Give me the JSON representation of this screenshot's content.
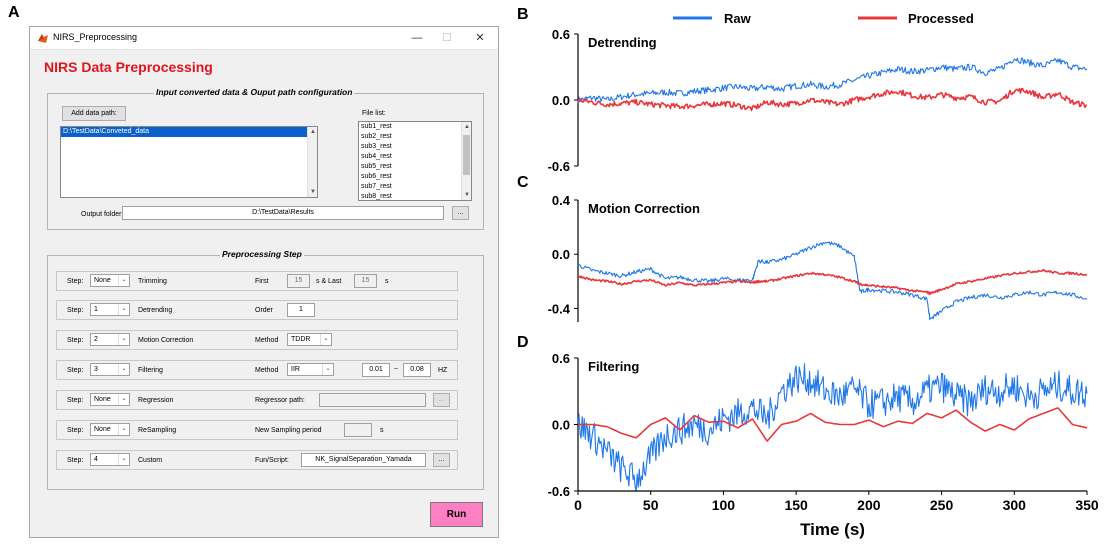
{
  "panels": {
    "a": "A",
    "b": "B",
    "c": "C",
    "d": "D"
  },
  "window": {
    "title": "NIRS_Preprocessing",
    "controls": {
      "minimize": "—",
      "maximize": "☐",
      "close": "✕"
    },
    "app_title": "NIRS Data Preprocessing",
    "io_group": {
      "legend": "Input converted data & Ouput path configuration",
      "add_data_button": "Add data path:",
      "data_paths": [
        "D:\\TestData\\Conveted_data"
      ],
      "file_list_label": "File list:",
      "file_list": [
        "sub1_rest",
        "sub2_rest",
        "sub3_rest",
        "sub4_rest",
        "sub5_rest",
        "sub6_rest",
        "sub7_rest",
        "sub8_rest"
      ],
      "output_label": "Output folder:",
      "output_value": "D:\\TestData\\Results",
      "browse_label": "..."
    },
    "steps_group": {
      "legend": "Preprocessing Step",
      "step_label": "Step:",
      "rows": [
        {
          "step": "None",
          "name": "Trimming",
          "param_label": "First",
          "v1": "15",
          "mid": "s & Last",
          "v2": "15",
          "unit": "s"
        },
        {
          "step": "1",
          "name": "Detrending",
          "param_label": "Order",
          "v1": "1"
        },
        {
          "step": "2",
          "name": "Motion Correction",
          "param_label": "Method",
          "method": "TDDR"
        },
        {
          "step": "3",
          "name": "Filtering",
          "param_label": "Method",
          "method": "IIR",
          "low": "0.01",
          "tilde": "~",
          "high": "0.08",
          "unit": "HZ"
        },
        {
          "step": "None",
          "name": "Regression",
          "param_label": "Regressor path:",
          "browse": "..."
        },
        {
          "step": "None",
          "name": "ReSampling",
          "param_label": "New Sampling period",
          "unit": "s"
        },
        {
          "step": "4",
          "name": "Custom",
          "param_label": "Fun/Script:",
          "script": "NK_SignalSeparation_Yamada",
          "browse": "..."
        }
      ]
    },
    "run_button": "Run"
  },
  "chart_data": [
    {
      "type": "line",
      "panel": "B",
      "annotation": "Detrending",
      "x": [
        0,
        10,
        20,
        30,
        40,
        50,
        60,
        70,
        80,
        90,
        100,
        110,
        120,
        130,
        140,
        150,
        160,
        170,
        180,
        190,
        200,
        210,
        220,
        230,
        240,
        250,
        260,
        270,
        280,
        290,
        300,
        310,
        320,
        330,
        340,
        350
      ],
      "series": [
        {
          "name": "Raw",
          "color": "#1f77e8",
          "values": [
            0.0,
            0.02,
            0.0,
            0.03,
            0.05,
            0.06,
            0.07,
            0.06,
            0.08,
            0.09,
            0.11,
            0.12,
            0.1,
            0.12,
            0.1,
            0.13,
            0.14,
            0.12,
            0.14,
            0.18,
            0.22,
            0.25,
            0.28,
            0.26,
            0.27,
            0.3,
            0.28,
            0.3,
            0.25,
            0.28,
            0.38,
            0.34,
            0.31,
            0.36,
            0.3,
            0.28
          ]
        },
        {
          "name": "Processed",
          "color": "#e8383d",
          "values": [
            0.0,
            -0.02,
            -0.04,
            -0.03,
            -0.02,
            -0.04,
            -0.05,
            -0.06,
            -0.05,
            -0.04,
            -0.03,
            -0.05,
            -0.08,
            -0.02,
            -0.04,
            -0.03,
            0.0,
            -0.02,
            -0.04,
            0.0,
            0.03,
            0.06,
            0.08,
            0.04,
            0.02,
            0.05,
            0.02,
            0.03,
            -0.02,
            -0.01,
            0.09,
            0.08,
            0.02,
            0.06,
            -0.02,
            -0.05
          ]
        }
      ],
      "yticks": [
        "0.6",
        "0.0",
        "-0.6"
      ],
      "ylim": [
        -0.6,
        0.6
      ]
    },
    {
      "type": "line",
      "panel": "C",
      "annotation": "Motion Correction",
      "x": [
        0,
        10,
        20,
        30,
        40,
        50,
        60,
        70,
        80,
        90,
        100,
        110,
        120,
        124,
        130,
        140,
        150,
        160,
        170,
        180,
        190,
        194,
        200,
        210,
        220,
        230,
        240,
        242,
        250,
        260,
        270,
        280,
        290,
        300,
        310,
        320,
        330,
        340,
        350
      ],
      "series": [
        {
          "name": "Raw",
          "values": [
            -0.08,
            -0.12,
            -0.14,
            -0.16,
            -0.13,
            -0.11,
            -0.18,
            -0.17,
            -0.19,
            -0.2,
            -0.18,
            -0.19,
            -0.19,
            -0.05,
            -0.06,
            -0.04,
            0.0,
            0.05,
            0.09,
            0.06,
            -0.02,
            -0.28,
            -0.26,
            -0.27,
            -0.28,
            -0.3,
            -0.33,
            -0.48,
            -0.42,
            -0.35,
            -0.32,
            -0.3,
            -0.32,
            -0.3,
            -0.28,
            -0.3,
            -0.28,
            -0.3,
            -0.33
          ]
        },
        {
          "name": "Processed",
          "values": [
            -0.16,
            -0.19,
            -0.2,
            -0.22,
            -0.2,
            -0.19,
            -0.23,
            -0.21,
            -0.23,
            -0.22,
            -0.21,
            -0.2,
            -0.21,
            -0.2,
            -0.2,
            -0.18,
            -0.16,
            -0.14,
            -0.15,
            -0.17,
            -0.2,
            -0.22,
            -0.23,
            -0.24,
            -0.25,
            -0.27,
            -0.28,
            -0.29,
            -0.26,
            -0.22,
            -0.2,
            -0.18,
            -0.16,
            -0.14,
            -0.13,
            -0.12,
            -0.14,
            -0.14,
            -0.15
          ]
        }
      ],
      "yticks": [
        "0.4",
        "0.0",
        "-0.4"
      ],
      "ylim": [
        -0.5,
        0.4
      ]
    },
    {
      "type": "line",
      "panel": "D",
      "annotation": "Filtering",
      "x": [
        0,
        10,
        20,
        30,
        40,
        50,
        60,
        70,
        80,
        90,
        100,
        110,
        120,
        130,
        140,
        150,
        160,
        170,
        180,
        190,
        200,
        210,
        220,
        230,
        240,
        250,
        260,
        270,
        280,
        290,
        300,
        310,
        320,
        330,
        340,
        350
      ],
      "series": [
        {
          "name": "Raw",
          "values": [
            0.0,
            -0.1,
            -0.25,
            -0.4,
            -0.5,
            -0.3,
            -0.1,
            -0.05,
            0.0,
            -0.05,
            0.05,
            0.1,
            0.15,
            0.05,
            0.3,
            0.42,
            0.4,
            0.3,
            0.25,
            0.32,
            0.18,
            0.2,
            0.25,
            0.2,
            0.3,
            0.35,
            0.25,
            0.2,
            0.32,
            0.3,
            0.35,
            0.25,
            0.3,
            0.35,
            0.3,
            0.28
          ]
        },
        {
          "name": "Processed",
          "values": [
            0.0,
            0.0,
            -0.02,
            -0.08,
            -0.12,
            0.0,
            0.06,
            -0.05,
            0.08,
            0.02,
            0.03,
            -0.03,
            0.05,
            -0.15,
            0.0,
            0.03,
            0.1,
            0.02,
            0.0,
            0.0,
            0.04,
            -0.02,
            0.03,
            0.01,
            0.1,
            0.06,
            0.13,
            0.02,
            -0.06,
            0.0,
            -0.05,
            0.05,
            0.1,
            0.15,
            0.0,
            -0.03
          ]
        }
      ],
      "yticks": [
        "0.6",
        "0.0",
        "-0.6"
      ],
      "ylim": [
        -0.6,
        0.6
      ],
      "xticks": [
        "0",
        "50",
        "100",
        "150",
        "200",
        "250",
        "300",
        "350"
      ],
      "xlabel": "Time (s)",
      "xlim": [
        0,
        350
      ]
    }
  ],
  "legend": {
    "raw": "Raw",
    "processed": "Processed"
  },
  "colors": {
    "raw": "#1f77e8",
    "processed": "#e8383d",
    "title_red": "#e0141e",
    "run_pink": "#ff7fc5"
  }
}
